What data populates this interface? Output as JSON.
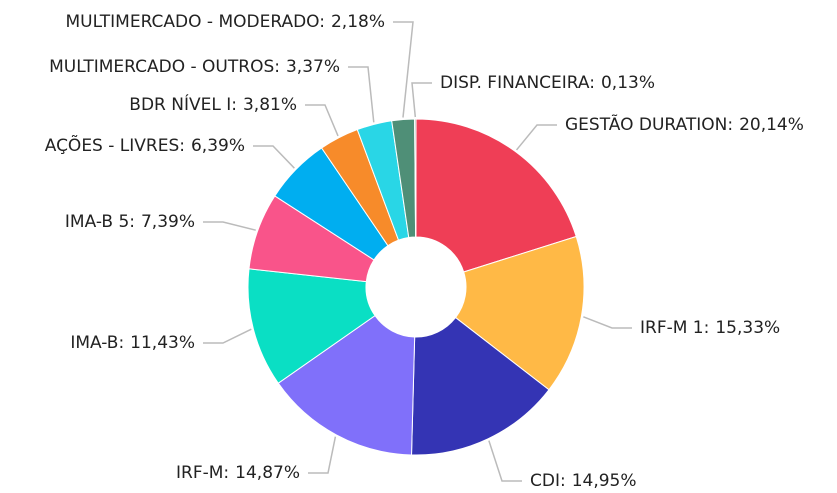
{
  "chart_data": {
    "type": "donut",
    "categories": [
      "GESTÃO DURATION:",
      "IRF-M 1:",
      "CDI:",
      "IRF-M:",
      "IMA-B:",
      "IMA-B 5:",
      "AÇÕES - LIVRES:",
      "BDR NÍVEL I:",
      "MULTIMERCADO - OUTROS:",
      "MULTIMERCADO - MODERADO:",
      "DISP. FINANCEIRA:"
    ],
    "values": [
      20.14,
      15.33,
      14.95,
      14.87,
      11.43,
      7.39,
      6.39,
      3.81,
      3.37,
      2.18,
      0.13
    ],
    "value_labels": [
      "20,14%",
      "15,33%",
      "14,95%",
      "14,87%",
      "11,43%",
      "7,39%",
      "6,39%",
      "3,81%",
      "3,37%",
      "2,18%",
      "0,13%"
    ],
    "colors": [
      "#ef3e56",
      "#ffb946",
      "#3434b4",
      "#8070fa",
      "#0adfc4",
      "#f9548a",
      "#00aef0",
      "#f78b2a",
      "#29d6e6",
      "#4f8f77",
      "#7a9a8a"
    ]
  }
}
